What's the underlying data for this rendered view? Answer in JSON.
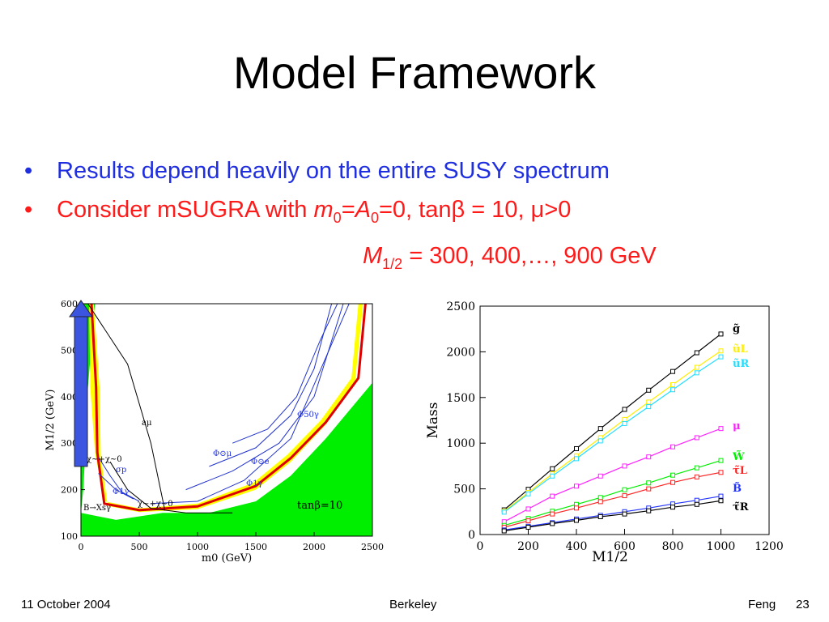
{
  "slide": {
    "title": "Model Framework",
    "bullet1": "Results depend heavily on the entire SUSY spectrum",
    "bullet2_prefix": "Consider mSUGRA with ",
    "bullet2_m": "m",
    "bullet2_sub0": "0",
    "bullet2_eq": "=",
    "bullet2_A": "A",
    "bullet2_sub1": "0",
    "bullet2_rest": "=0, tan",
    "bullet2_beta": "β",
    "bullet2_rest2": " = 10, ",
    "bullet2_mu": "μ",
    "bullet2_rest3": ">0",
    "line2_M": "M",
    "line2_sub": "1/2",
    "line2_rest": " = 300, 400,…, 900 GeV",
    "bullet_symbol": "•"
  },
  "footer": {
    "date": "11 October 2004",
    "venue": "Berkeley",
    "author": "Feng",
    "page": "23"
  },
  "colors": {
    "blue_text": "#1f2fe0",
    "red_text": "#ff1a1a",
    "allowed_green": "#00ee00",
    "band_yellow": "#ffff00",
    "band_red": "#dd0000",
    "contour_blue": "#2233cc",
    "arrow_blue": "#3b55e0"
  },
  "chart_data": [
    {
      "type": "area",
      "xlabel": "m0 (GeV)",
      "ylabel": "M1/2 (GeV)",
      "xlim": [
        0,
        2500
      ],
      "ylim": [
        100,
        600
      ],
      "xticks": [
        "0",
        "500",
        "1000",
        "1500",
        "2000",
        "2500"
      ],
      "yticks": [
        "100",
        "200",
        "300",
        "400",
        "500",
        "600"
      ],
      "annotations": [
        "aμ",
        "σp",
        "Φ⊙μ",
        "Φ1γ",
        "Φ50γ",
        "Φ1γ",
        "Φ⊙e",
        "B→Xsγ",
        "χ~+χ~0",
        "χ~+χ~0",
        "tanβ=10"
      ],
      "regions": {
        "green_left": [
          [
            0,
            600
          ],
          [
            120,
            600
          ],
          [
            60,
            420
          ],
          [
            40,
            300
          ],
          [
            20,
            200
          ],
          [
            0,
            150
          ]
        ],
        "green_bottom": [
          [
            0,
            150
          ],
          [
            300,
            135
          ],
          [
            700,
            150
          ],
          [
            1100,
            150
          ],
          [
            1500,
            175
          ],
          [
            1800,
            230
          ],
          [
            2100,
            310
          ],
          [
            2500,
            430
          ],
          [
            2500,
            100
          ],
          [
            0,
            100
          ]
        ],
        "yellow_band": [
          [
            70,
            600
          ],
          [
            110,
            600
          ],
          [
            160,
            420
          ],
          [
            170,
            270
          ],
          [
            230,
            165
          ],
          [
            500,
            152
          ],
          [
            1000,
            158
          ],
          [
            1500,
            200
          ],
          [
            1800,
            260
          ],
          [
            2100,
            340
          ],
          [
            2350,
            430
          ],
          [
            2420,
            600
          ],
          [
            2380,
            600
          ],
          [
            2320,
            440
          ],
          [
            2060,
            350
          ],
          [
            1770,
            275
          ],
          [
            1480,
            215
          ],
          [
            1000,
            170
          ],
          [
            500,
            160
          ],
          [
            200,
            175
          ],
          [
            120,
            280
          ],
          [
            80,
            420
          ]
        ],
        "red_band": [
          [
            90,
            600
          ],
          [
            130,
            420
          ],
          [
            140,
            280
          ],
          [
            200,
            170
          ],
          [
            500,
            156
          ],
          [
            1000,
            164
          ],
          [
            1500,
            208
          ],
          [
            1800,
            268
          ],
          [
            2100,
            345
          ],
          [
            2380,
            440
          ],
          [
            2440,
            600
          ]
        ]
      },
      "arrow": {
        "from": [
          0,
          250
        ],
        "to": [
          0,
          600
        ]
      }
    },
    {
      "type": "line",
      "xlabel": "M1/2",
      "ylabel": "Mass",
      "xlim": [
        0,
        1200
      ],
      "ylim": [
        0,
        2500
      ],
      "xticks": [
        "0",
        "200",
        "400",
        "600",
        "800",
        "1000",
        "1200"
      ],
      "yticks": [
        "0",
        "500",
        "1000",
        "1500",
        "2000",
        "2500"
      ],
      "x": [
        100,
        200,
        300,
        400,
        500,
        600,
        700,
        800,
        900,
        1000
      ],
      "series": [
        {
          "name": "g̃",
          "color": "#000000",
          "values": [
            270,
            495,
            720,
            940,
            1160,
            1370,
            1580,
            1785,
            1990,
            2195
          ]
        },
        {
          "name": "ũL",
          "color": "#ffee00",
          "values": [
            255,
            460,
            665,
            860,
            1060,
            1260,
            1450,
            1640,
            1830,
            2010
          ]
        },
        {
          "name": "ũR",
          "color": "#22ddff",
          "values": [
            245,
            445,
            640,
            830,
            1025,
            1215,
            1400,
            1585,
            1770,
            1945
          ]
        },
        {
          "name": "μ",
          "color": "#ff22ff",
          "values": [
            140,
            280,
            420,
            530,
            640,
            750,
            850,
            960,
            1060,
            1160
          ]
        },
        {
          "name": "W̃",
          "color": "#00ee00",
          "values": [
            100,
            175,
            255,
            330,
            405,
            490,
            565,
            650,
            730,
            810
          ]
        },
        {
          "name": "τ̃L",
          "color": "#ff2222",
          "values": [
            80,
            150,
            225,
            290,
            360,
            425,
            500,
            570,
            630,
            680
          ]
        },
        {
          "name": "B̃",
          "color": "#2233ff",
          "values": [
            50,
            90,
            130,
            170,
            210,
            250,
            290,
            335,
            375,
            420
          ]
        },
        {
          "name": "τ̃R",
          "color": "#000000",
          "values": [
            40,
            80,
            120,
            155,
            195,
            225,
            260,
            300,
            330,
            370
          ]
        }
      ]
    }
  ]
}
